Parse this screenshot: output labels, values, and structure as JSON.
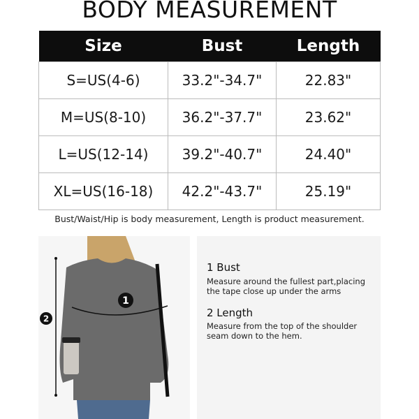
{
  "title": "BODY MEASUREMENT",
  "table": {
    "headers": [
      "Size",
      "Bust",
      "Length"
    ],
    "rows": [
      [
        "S=US(4-6)",
        "33.2\"-34.7\"",
        "22.83\""
      ],
      [
        "M=US(8-10)",
        "36.2\"-37.7\"",
        "23.62\""
      ],
      [
        "L=US(12-14)",
        "39.2\"-40.7\"",
        "24.40\""
      ],
      [
        "XL=US(16-18)",
        "42.2\"-43.7\"",
        "25.19\""
      ]
    ]
  },
  "note": "Bust/Waist/Hip is body measurement, Length is product measurement.",
  "markers": {
    "bust": "1",
    "length": "2"
  },
  "guide": {
    "bust_title": "1 Bust",
    "bust_desc": "Measure around the fullest part,placing the tape close up under the arms",
    "length_title": "2 Length",
    "length_desc": "Measure from the top of the shoulder seam down to the hem."
  },
  "colors": {
    "header_bg": "#0d0d0d",
    "sweater": "#6b6b6b"
  }
}
